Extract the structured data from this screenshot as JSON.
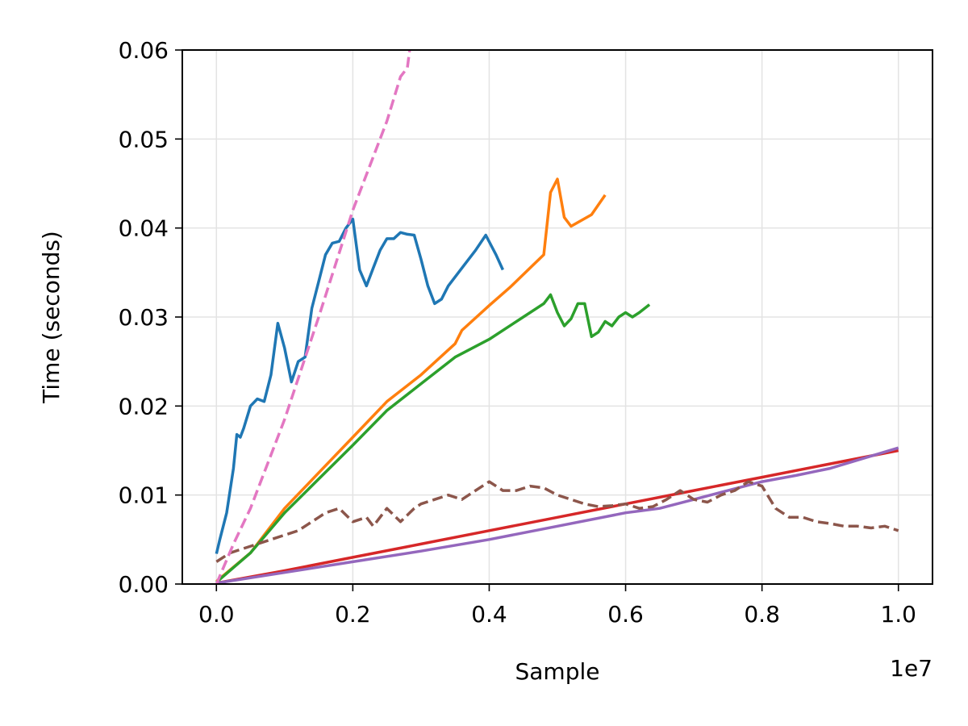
{
  "chart_data": {
    "type": "line",
    "title": "",
    "xlabel": "Sample",
    "ylabel": "Time (seconds)",
    "x_offset_label": "1e7",
    "xlim": [
      -0.05,
      1.05
    ],
    "ylim": [
      0,
      0.06
    ],
    "x_ticks": [
      0.0,
      0.2,
      0.4,
      0.6,
      0.8,
      1.0
    ],
    "x_tick_labels": [
      "0.0",
      "0.2",
      "0.4",
      "0.6",
      "0.8",
      "1.0"
    ],
    "y_ticks": [
      0,
      0.01,
      0.02,
      0.03,
      0.04,
      0.05,
      0.06
    ],
    "y_tick_labels": [
      "0.00",
      "0.01",
      "0.02",
      "0.03",
      "0.04",
      "0.05",
      "0.06"
    ],
    "grid": true,
    "series": [
      {
        "color": "#1f77b4",
        "dash": "solid",
        "x": [
          0.0,
          0.005,
          0.015,
          0.025,
          0.03,
          0.035,
          0.04,
          0.05,
          0.06,
          0.07,
          0.08,
          0.09,
          0.1,
          0.11,
          0.12,
          0.13,
          0.14,
          0.15,
          0.16,
          0.17,
          0.18,
          0.19,
          0.2,
          0.21,
          0.22,
          0.23,
          0.24,
          0.25,
          0.26,
          0.27,
          0.28,
          0.29,
          0.3,
          0.31,
          0.32,
          0.33,
          0.34,
          0.36,
          0.38,
          0.395,
          0.41,
          0.42
        ],
        "y": [
          0.0034,
          0.005,
          0.008,
          0.013,
          0.0168,
          0.0165,
          0.0175,
          0.02,
          0.0208,
          0.0205,
          0.0235,
          0.0293,
          0.0265,
          0.0227,
          0.025,
          0.0255,
          0.031,
          0.034,
          0.037,
          0.0383,
          0.0385,
          0.04,
          0.041,
          0.0353,
          0.0335,
          0.0355,
          0.0375,
          0.0388,
          0.0388,
          0.0395,
          0.0393,
          0.0392,
          0.0365,
          0.0335,
          0.0315,
          0.032,
          0.0335,
          0.0355,
          0.0375,
          0.0392,
          0.037,
          0.0353
        ]
      },
      {
        "color": "#ff7f0e",
        "dash": "solid",
        "x": [
          0.0,
          0.05,
          0.1,
          0.15,
          0.2,
          0.25,
          0.3,
          0.35,
          0.36,
          0.4,
          0.43,
          0.48,
          0.49,
          0.5,
          0.51,
          0.52,
          0.55,
          0.57
        ],
        "y": [
          0.0003,
          0.0035,
          0.0085,
          0.0125,
          0.0165,
          0.0205,
          0.0235,
          0.027,
          0.0285,
          0.0313,
          0.0333,
          0.037,
          0.044,
          0.0455,
          0.0412,
          0.0402,
          0.0415,
          0.0437
        ]
      },
      {
        "color": "#2ca02c",
        "dash": "solid",
        "x": [
          0.0,
          0.05,
          0.1,
          0.15,
          0.2,
          0.25,
          0.3,
          0.35,
          0.4,
          0.45,
          0.48,
          0.49,
          0.5,
          0.51,
          0.52,
          0.53,
          0.54,
          0.55,
          0.56,
          0.57,
          0.58,
          0.59,
          0.6,
          0.61,
          0.62,
          0.635
        ],
        "y": [
          0.0002,
          0.0035,
          0.008,
          0.0118,
          0.0156,
          0.0195,
          0.0225,
          0.0255,
          0.0275,
          0.03,
          0.0315,
          0.0325,
          0.0305,
          0.029,
          0.0298,
          0.0315,
          0.0315,
          0.0278,
          0.0283,
          0.0295,
          0.029,
          0.03,
          0.0305,
          0.03,
          0.0305,
          0.0314
        ]
      },
      {
        "color": "#d62728",
        "dash": "solid",
        "x": [
          0.0,
          0.1,
          0.2,
          0.3,
          0.4,
          0.5,
          0.6,
          0.7,
          0.8,
          0.9,
          1.0
        ],
        "y": [
          0.0001,
          0.0015,
          0.003,
          0.0045,
          0.006,
          0.0075,
          0.009,
          0.0105,
          0.012,
          0.0135,
          0.015
        ]
      },
      {
        "color": "#9467bd",
        "dash": "solid",
        "x": [
          0.0,
          0.1,
          0.2,
          0.3,
          0.4,
          0.5,
          0.6,
          0.65,
          0.7,
          0.75,
          0.8,
          0.85,
          0.9,
          1.0
        ],
        "y": [
          0.0001,
          0.0013,
          0.0025,
          0.0037,
          0.005,
          0.0065,
          0.008,
          0.0085,
          0.0095,
          0.0105,
          0.0115,
          0.0122,
          0.013,
          0.0153
        ]
      },
      {
        "color": "#8c564b",
        "dash": "dashed",
        "x": [
          0.0,
          0.02,
          0.04,
          0.06,
          0.08,
          0.1,
          0.12,
          0.14,
          0.15,
          0.16,
          0.18,
          0.2,
          0.22,
          0.23,
          0.25,
          0.27,
          0.29,
          0.3,
          0.32,
          0.34,
          0.36,
          0.38,
          0.4,
          0.42,
          0.44,
          0.46,
          0.48,
          0.5,
          0.52,
          0.54,
          0.56,
          0.58,
          0.6,
          0.62,
          0.64,
          0.66,
          0.68,
          0.7,
          0.72,
          0.74,
          0.76,
          0.78,
          0.8,
          0.82,
          0.84,
          0.86,
          0.88,
          0.9,
          0.92,
          0.94,
          0.96,
          0.98,
          1.0
        ],
        "y": [
          0.0025,
          0.0035,
          0.004,
          0.0045,
          0.005,
          0.0055,
          0.006,
          0.007,
          0.0075,
          0.008,
          0.0085,
          0.007,
          0.0075,
          0.0065,
          0.0085,
          0.007,
          0.0085,
          0.009,
          0.0095,
          0.01,
          0.0095,
          0.0105,
          0.0115,
          0.0105,
          0.0105,
          0.011,
          0.0108,
          0.01,
          0.0095,
          0.009,
          0.0087,
          0.0088,
          0.009,
          0.0085,
          0.0087,
          0.0095,
          0.0105,
          0.0095,
          0.0092,
          0.01,
          0.0105,
          0.0115,
          0.011,
          0.0085,
          0.0075,
          0.0075,
          0.007,
          0.0068,
          0.0065,
          0.0065,
          0.0063,
          0.0065,
          0.006
        ]
      },
      {
        "color": "#e377c2",
        "dash": "dashed",
        "x": [
          0.0,
          0.025,
          0.05,
          0.1,
          0.15,
          0.2,
          0.25,
          0.27,
          0.28,
          0.285
        ],
        "y": [
          0.0,
          0.0045,
          0.0085,
          0.0185,
          0.03,
          0.042,
          0.052,
          0.057,
          0.058,
          0.061
        ]
      }
    ]
  }
}
